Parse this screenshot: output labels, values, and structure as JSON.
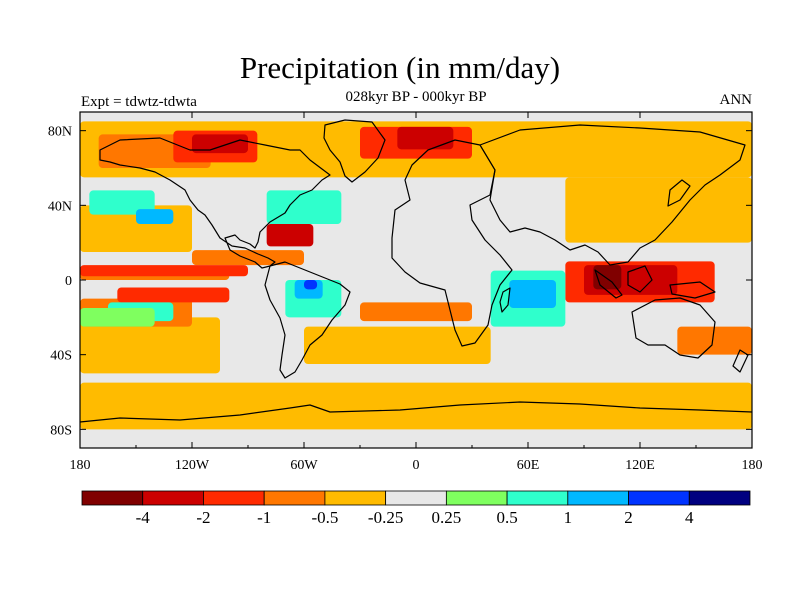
{
  "header": {
    "title": "Precipitation (in mm/day)",
    "subtitle": "028kyr BP - 000kyr BP",
    "left_label": "Expt = tdwtz-tdwta",
    "right_label": "ANN"
  },
  "chart_data": {
    "type": "heatmap",
    "title": "Precipitation (in mm/day)",
    "subtitle": "028kyr BP - 000kyr BP",
    "x_range": [
      -180,
      180
    ],
    "y_range": [
      -90,
      90
    ],
    "x_ticks": [
      {
        "value": -180,
        "label": "180"
      },
      {
        "value": -120,
        "label": "120W"
      },
      {
        "value": -60,
        "label": "60W"
      },
      {
        "value": 0,
        "label": "0"
      },
      {
        "value": 60,
        "label": "60E"
      },
      {
        "value": 120,
        "label": "120E"
      },
      {
        "value": 180,
        "label": "180"
      }
    ],
    "y_ticks": [
      {
        "value": 80,
        "label": "80N"
      },
      {
        "value": 40,
        "label": "40N"
      },
      {
        "value": 0,
        "label": "0"
      },
      {
        "value": -40,
        "label": "40S"
      },
      {
        "value": -80,
        "label": "80S"
      }
    ],
    "colorbar": {
      "colors": [
        "#800000",
        "#cc0000",
        "#ff2a00",
        "#ff7700",
        "#ffbb00",
        "#e8e8e8",
        "#7fff5f",
        "#2fffcc",
        "#00b8ff",
        "#0033ff",
        "#000080"
      ],
      "labels": [
        "-4",
        "-2",
        "-1",
        "-0.5",
        "-0.25",
        "0.25",
        "0.5",
        "1",
        "2",
        "4"
      ]
    },
    "field_regions": [
      {
        "color": "#ffbb00",
        "lon": [
          -180,
          180
        ],
        "lat": [
          -80,
          -55
        ]
      },
      {
        "color": "#ffbb00",
        "lon": [
          -180,
          -105
        ],
        "lat": [
          -50,
          -20
        ]
      },
      {
        "color": "#ffbb00",
        "lon": [
          -180,
          -120
        ],
        "lat": [
          15,
          40
        ]
      },
      {
        "color": "#ffbb00",
        "lon": [
          -180,
          180
        ],
        "lat": [
          55,
          85
        ]
      },
      {
        "color": "#ffbb00",
        "lon": [
          80,
          180
        ],
        "lat": [
          20,
          55
        ]
      },
      {
        "color": "#ffbb00",
        "lon": [
          -60,
          40
        ],
        "lat": [
          -45,
          -25
        ]
      },
      {
        "color": "#ff7700",
        "lon": [
          -180,
          -120
        ],
        "lat": [
          -25,
          -10
        ]
      },
      {
        "color": "#ff7700",
        "lon": [
          -170,
          -110
        ],
        "lat": [
          60,
          78
        ]
      },
      {
        "color": "#ff7700",
        "lon": [
          -120,
          -60
        ],
        "lat": [
          8,
          16
        ]
      },
      {
        "color": "#ff7700",
        "lon": [
          -30,
          30
        ],
        "lat": [
          -22,
          -12
        ]
      },
      {
        "color": "#ff7700",
        "lon": [
          140,
          180
        ],
        "lat": [
          -40,
          -25
        ]
      },
      {
        "color": "#ff7700",
        "lon": [
          -180,
          -100
        ],
        "lat": [
          0,
          6
        ]
      },
      {
        "color": "#ff2a00",
        "lon": [
          -180,
          -90
        ],
        "lat": [
          2,
          8
        ]
      },
      {
        "color": "#ff2a00",
        "lon": [
          -160,
          -100
        ],
        "lat": [
          -12,
          -4
        ]
      },
      {
        "color": "#ff2a00",
        "lon": [
          -130,
          -85
        ],
        "lat": [
          63,
          80
        ]
      },
      {
        "color": "#ff2a00",
        "lon": [
          -30,
          30
        ],
        "lat": [
          65,
          82
        ]
      },
      {
        "color": "#ff2a00",
        "lon": [
          80,
          160
        ],
        "lat": [
          -12,
          10
        ]
      },
      {
        "color": "#cc0000",
        "lon": [
          -120,
          -90
        ],
        "lat": [
          68,
          78
        ]
      },
      {
        "color": "#cc0000",
        "lon": [
          -10,
          20
        ],
        "lat": [
          70,
          82
        ]
      },
      {
        "color": "#cc0000",
        "lon": [
          -80,
          -55
        ],
        "lat": [
          18,
          30
        ]
      },
      {
        "color": "#cc0000",
        "lon": [
          90,
          140
        ],
        "lat": [
          -8,
          8
        ]
      },
      {
        "color": "#800000",
        "lon": [
          95,
          110
        ],
        "lat": [
          -5,
          8
        ]
      },
      {
        "color": "#2fffcc",
        "lon": [
          -80,
          -40
        ],
        "lat": [
          30,
          48
        ]
      },
      {
        "color": "#2fffcc",
        "lon": [
          40,
          80
        ],
        "lat": [
          -25,
          5
        ]
      },
      {
        "color": "#2fffcc",
        "lon": [
          -70,
          -40
        ],
        "lat": [
          -20,
          0
        ]
      },
      {
        "color": "#2fffcc",
        "lon": [
          -165,
          -130
        ],
        "lat": [
          -22,
          -12
        ]
      },
      {
        "color": "#2fffcc",
        "lon": [
          -175,
          -140
        ],
        "lat": [
          35,
          48
        ]
      },
      {
        "color": "#00b8ff",
        "lon": [
          50,
          75
        ],
        "lat": [
          -15,
          0
        ]
      },
      {
        "color": "#00b8ff",
        "lon": [
          -65,
          -50
        ],
        "lat": [
          -10,
          0
        ]
      },
      {
        "color": "#00b8ff",
        "lon": [
          -150,
          -130
        ],
        "lat": [
          30,
          38
        ]
      },
      {
        "color": "#0033ff",
        "lon": [
          -60,
          -53
        ],
        "lat": [
          -5,
          0
        ]
      },
      {
        "color": "#7fff5f",
        "lon": [
          -180,
          -140
        ],
        "lat": [
          -25,
          -15
        ]
      }
    ]
  }
}
